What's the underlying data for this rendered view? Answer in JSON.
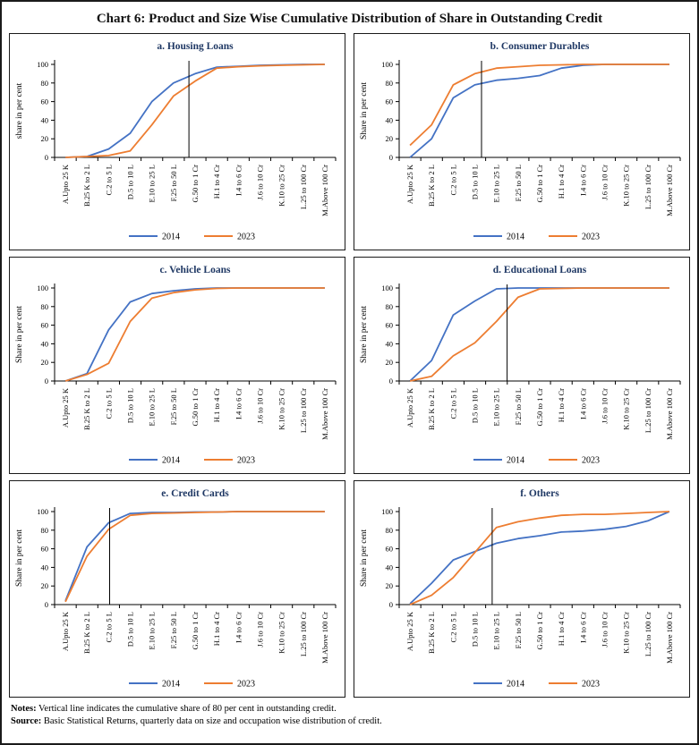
{
  "page": {
    "title": "Chart 6: Product and Size Wise Cumulative Distribution of Share in Outstanding Credit",
    "notes_label": "Notes:",
    "notes_text": " Vertical line indicates the cumulative share of 80 per cent in outstanding credit.",
    "source_label": "Source:",
    "source_text": " Basic Statistical Returns, quarterly data on size and occupation wise distribution of credit."
  },
  "colors": {
    "series_2014": "#4472C4",
    "series_2023": "#ED7D31",
    "vline": "#000000",
    "subplot_title": "#1F3864",
    "axis": "#000000"
  },
  "legend": [
    "2014",
    "2023"
  ],
  "chart_data": [
    {
      "id": "a",
      "type": "line",
      "title": "a. Housing Loans",
      "ylabel": "share in per cent",
      "ylim": [
        0,
        100
      ],
      "yticks": [
        0,
        20,
        40,
        60,
        80,
        100
      ],
      "grid": false,
      "legend_position": "bottom",
      "categories": [
        "A.Upto 25 K",
        "B.25 K to 2 L",
        "C.2 to 5 L",
        "D.5 to 10 L",
        "E.10 to 25 L",
        "F.25 to 50 L",
        "G.50 to 1 Cr",
        "H.1 to 4 Cr",
        "I.4 to 6 Cr",
        "J.6 to 10 Cr",
        "K.10 to 25 Cr",
        "L.25 to 100 Cr",
        "M.Above 100 Cr"
      ],
      "series": [
        {
          "name": "2014",
          "values": [
            0,
            1,
            9,
            26,
            60,
            80,
            90,
            97,
            98,
            99,
            99.5,
            100,
            100
          ]
        },
        {
          "name": "2023",
          "values": [
            0,
            1,
            2,
            7,
            35,
            66,
            82,
            96,
            97.5,
            98.5,
            99,
            99.5,
            100
          ]
        }
      ],
      "vline_x_fraction": 0.478
    },
    {
      "id": "b",
      "type": "line",
      "title": "b. Consumer Durables",
      "ylabel": "Share in per cent",
      "ylim": [
        0,
        100
      ],
      "yticks": [
        0,
        20,
        40,
        60,
        80,
        100
      ],
      "grid": false,
      "legend_position": "bottom",
      "categories": [
        "A.Upto 25 K",
        "B.25 K to 2 L",
        "C.2 to 5 L",
        "D.5 to 10 L",
        "E.10 to 25 L",
        "F.25 to 50 L",
        "G.50 to 1 Cr",
        "H.1 to 4 Cr",
        "I.4 to 6 Cr",
        "J.6 to 10 Cr",
        "K.10 to 25 Cr",
        "L.25 to 100 Cr",
        "M.Above 100 Cr"
      ],
      "series": [
        {
          "name": "2014",
          "values": [
            0,
            20,
            64,
            78,
            83,
            85,
            88,
            96,
            99,
            100,
            100,
            100,
            100
          ]
        },
        {
          "name": "2023",
          "values": [
            13,
            35,
            78,
            90,
            96,
            97.5,
            99,
            99.5,
            100,
            100,
            100,
            100,
            100
          ]
        }
      ],
      "vline_x_fraction": 0.293
    },
    {
      "id": "c",
      "type": "line",
      "title": "c. Vehicle Loans",
      "ylabel": "Share in per cent",
      "ylim": [
        0,
        100
      ],
      "yticks": [
        0,
        20,
        40,
        60,
        80,
        100
      ],
      "grid": false,
      "legend_position": "bottom",
      "categories": [
        "A.Upto 25 K",
        "B.25 K to 2 L",
        "C.2 to 5 L",
        "D.5 to 10 L",
        "E.10 to 25 L",
        "F.25 to 50 L",
        "G.50 to 1 Cr",
        "H.1 to 4 Cr",
        "I.4 to 6 Cr",
        "J.6 to 10 Cr",
        "K.10 to 25 Cr",
        "L.25 to 100 Cr",
        "M.Above 100 Cr"
      ],
      "series": [
        {
          "name": "2014",
          "values": [
            0,
            8,
            55,
            85,
            94,
            97,
            99,
            100,
            100,
            100,
            100,
            100,
            100
          ]
        },
        {
          "name": "2023",
          "values": [
            0,
            7,
            19,
            64,
            89,
            95,
            98,
            99.5,
            100,
            100,
            100,
            100,
            100
          ]
        }
      ],
      "vline_x_fraction": null
    },
    {
      "id": "d",
      "type": "line",
      "title": "d. Educational Loans",
      "ylabel": "Share in per cent",
      "ylim": [
        0,
        100
      ],
      "yticks": [
        0,
        20,
        40,
        60,
        80,
        100
      ],
      "grid": false,
      "legend_position": "bottom",
      "categories": [
        "A.Upto 25 K",
        "B.25 K to 2 L",
        "C.2 to 5 L",
        "D.5 to 10 L",
        "E.10 to 25 L",
        "F.25 to 50 L",
        "G.50 to 1 Cr",
        "H.1 to 4 Cr",
        "I.4 to 6 Cr",
        "J.6 to 10 Cr",
        "K.10 to 25 Cr",
        "L.25 to 100 Cr",
        "M.Above 100 Cr"
      ],
      "series": [
        {
          "name": "2014",
          "values": [
            0,
            22,
            71,
            86,
            99,
            100,
            100,
            100,
            100,
            100,
            100,
            100,
            100
          ]
        },
        {
          "name": "2023",
          "values": [
            0,
            5,
            27,
            41,
            64,
            90,
            99,
            99.5,
            100,
            100,
            100,
            100,
            100
          ]
        }
      ],
      "vline_x_fraction": 0.384
    },
    {
      "id": "e",
      "type": "line",
      "title": "e. Credit Cards",
      "ylabel": "Share in per cent",
      "ylim": [
        0,
        100
      ],
      "yticks": [
        0,
        20,
        40,
        60,
        80,
        100
      ],
      "grid": false,
      "legend_position": "bottom",
      "categories": [
        "A.Upto 25 K",
        "B.25 K to 2 L",
        "C.2 to 5 L",
        "D.5 to 10 L",
        "E.10 to 25 L",
        "F.25 to 50 L",
        "G.50 to 1 Cr",
        "H.1 to 4 Cr",
        "I.4 to 6 Cr",
        "J.6 to 10 Cr",
        "K.10 to 25 Cr",
        "L.25 to 100 Cr",
        "M.Above 100 Cr"
      ],
      "series": [
        {
          "name": "2014",
          "values": [
            4,
            62,
            88,
            98,
            99,
            99,
            99.5,
            99.5,
            100,
            100,
            100,
            100,
            100
          ]
        },
        {
          "name": "2023",
          "values": [
            3,
            52,
            81,
            96,
            98,
            98.5,
            99,
            99.5,
            100,
            100,
            100,
            100,
            100
          ]
        }
      ],
      "vline_x_fraction": 0.196
    },
    {
      "id": "f",
      "type": "line",
      "title": "f. Others",
      "ylabel": "Share in per cent",
      "ylim": [
        0,
        100
      ],
      "yticks": [
        0,
        20,
        40,
        60,
        80,
        100
      ],
      "grid": false,
      "legend_position": "bottom",
      "categories": [
        "A.Upto 25 K",
        "B.25 K to 2 L",
        "C.2 to 5 L",
        "D.5 to 10 L",
        "E.10 to 25 L",
        "F.25 to 50 L",
        "G.50 to 1 Cr",
        "H.1 to 4 Cr",
        "I.4 to 6 Cr",
        "J.6 to 10 Cr",
        "K.10 to 25 Cr",
        "L.25 to 100 Cr",
        "M.Above 100 Cr"
      ],
      "series": [
        {
          "name": "2014",
          "values": [
            1,
            23,
            48,
            57,
            66,
            71,
            74,
            78,
            79,
            81,
            84,
            90,
            100
          ]
        },
        {
          "name": "2023",
          "values": [
            0,
            10,
            29,
            56,
            83,
            89,
            93,
            96,
            97,
            97,
            98,
            99,
            100
          ]
        }
      ],
      "vline_x_fraction": 0.331
    }
  ]
}
